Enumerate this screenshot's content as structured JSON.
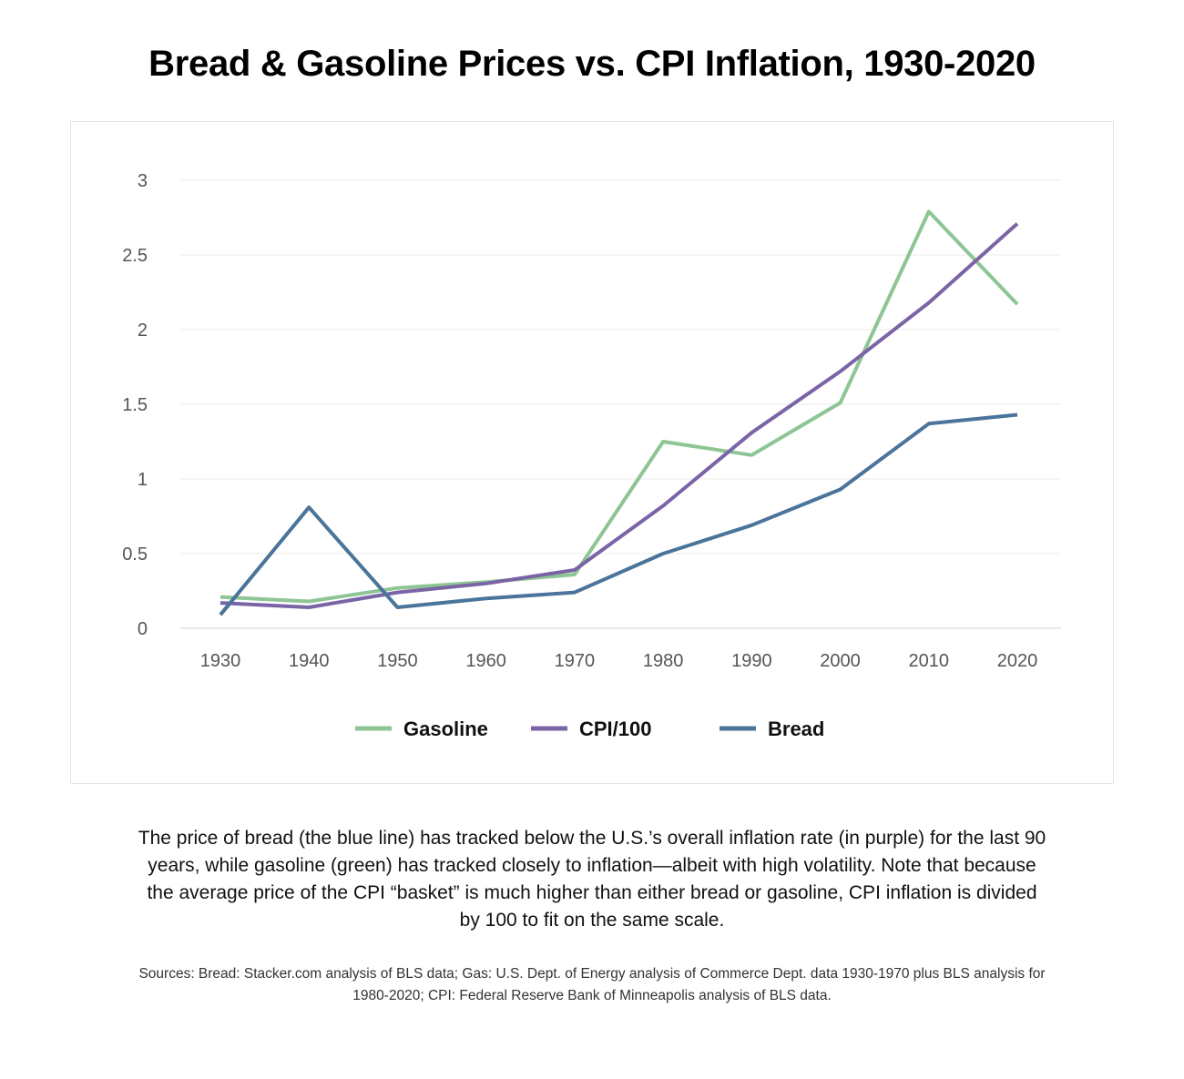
{
  "title": "Bread & Gasoline Prices vs. CPI Inflation, 1930-2020",
  "caption": "The price of bread (the blue line) has tracked below the U.S.’s overall inflation rate (in purple) for the last 90 years, while gasoline (green) has tracked closely to inflation—albeit with high volatility. Note that because the average price of the CPI “basket” is much higher than either bread or gasoline, CPI inflation is divided by 100 to fit on the same scale.",
  "sources": "Sources: Bread: Stacker.com analysis of BLS data; Gas: U.S. Dept. of Energy analysis of Commerce Dept. data 1930-1970 plus BLS analysis for 1980-2020; CPI: Federal Reserve Bank of Minneapolis analysis of BLS data.",
  "chart_data": {
    "type": "line",
    "title": "Bread & Gasoline Prices vs. CPI Inflation, 1930-2020",
    "xlabel": "",
    "ylabel": "",
    "x": [
      "1930",
      "1940",
      "1950",
      "1960",
      "1970",
      "1980",
      "1990",
      "2000",
      "2010",
      "2020"
    ],
    "ylim": [
      0,
      3
    ],
    "yticks": [
      "0",
      "0.5",
      "1",
      "1.5",
      "2",
      "2.5",
      "3"
    ],
    "grid": true,
    "legend": "bottom",
    "series": [
      {
        "name": "Gasoline",
        "color": "#8dc594",
        "values": [
          0.21,
          0.18,
          0.27,
          0.31,
          0.36,
          1.25,
          1.16,
          1.51,
          2.79,
          2.17
        ]
      },
      {
        "name": "CPI/100",
        "color": "#7b64a6",
        "values": [
          0.17,
          0.14,
          0.24,
          0.3,
          0.39,
          0.82,
          1.31,
          1.72,
          2.18,
          2.71
        ]
      },
      {
        "name": "Bread",
        "color": "#4a7499",
        "values": [
          0.09,
          0.81,
          0.14,
          0.2,
          0.24,
          0.5,
          0.69,
          0.93,
          1.37,
          1.43
        ]
      }
    ]
  }
}
